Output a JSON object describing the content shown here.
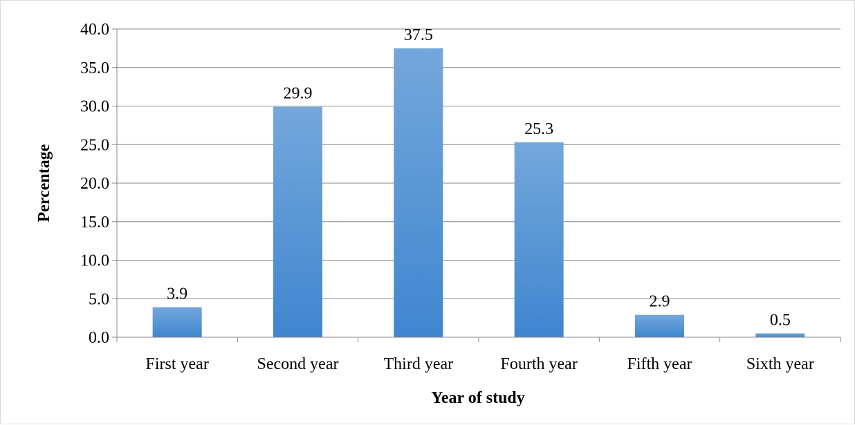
{
  "chart_data": {
    "type": "bar",
    "categories": [
      "First year",
      "Second year",
      "Third year",
      "Fourth year",
      "Fifth year",
      "Sixth year"
    ],
    "values": [
      3.9,
      29.9,
      37.5,
      25.3,
      2.9,
      0.5
    ],
    "data_labels": [
      "3.9",
      "29.9",
      "37.5",
      "25.3",
      "2.9",
      "0.5"
    ],
    "xlabel": "Year of study",
    "ylabel": "Percentage",
    "ylim": [
      0,
      40
    ],
    "yticks": [
      "0.0",
      "5.0",
      "10.0",
      "15.0",
      "20.0",
      "25.0",
      "30.0",
      "35.0",
      "40.0"
    ],
    "grid": true,
    "legend": "none",
    "colors": {
      "bar_top": "#74a7dc",
      "bar_bottom": "#3f86cf",
      "gridline": "#868686"
    }
  }
}
